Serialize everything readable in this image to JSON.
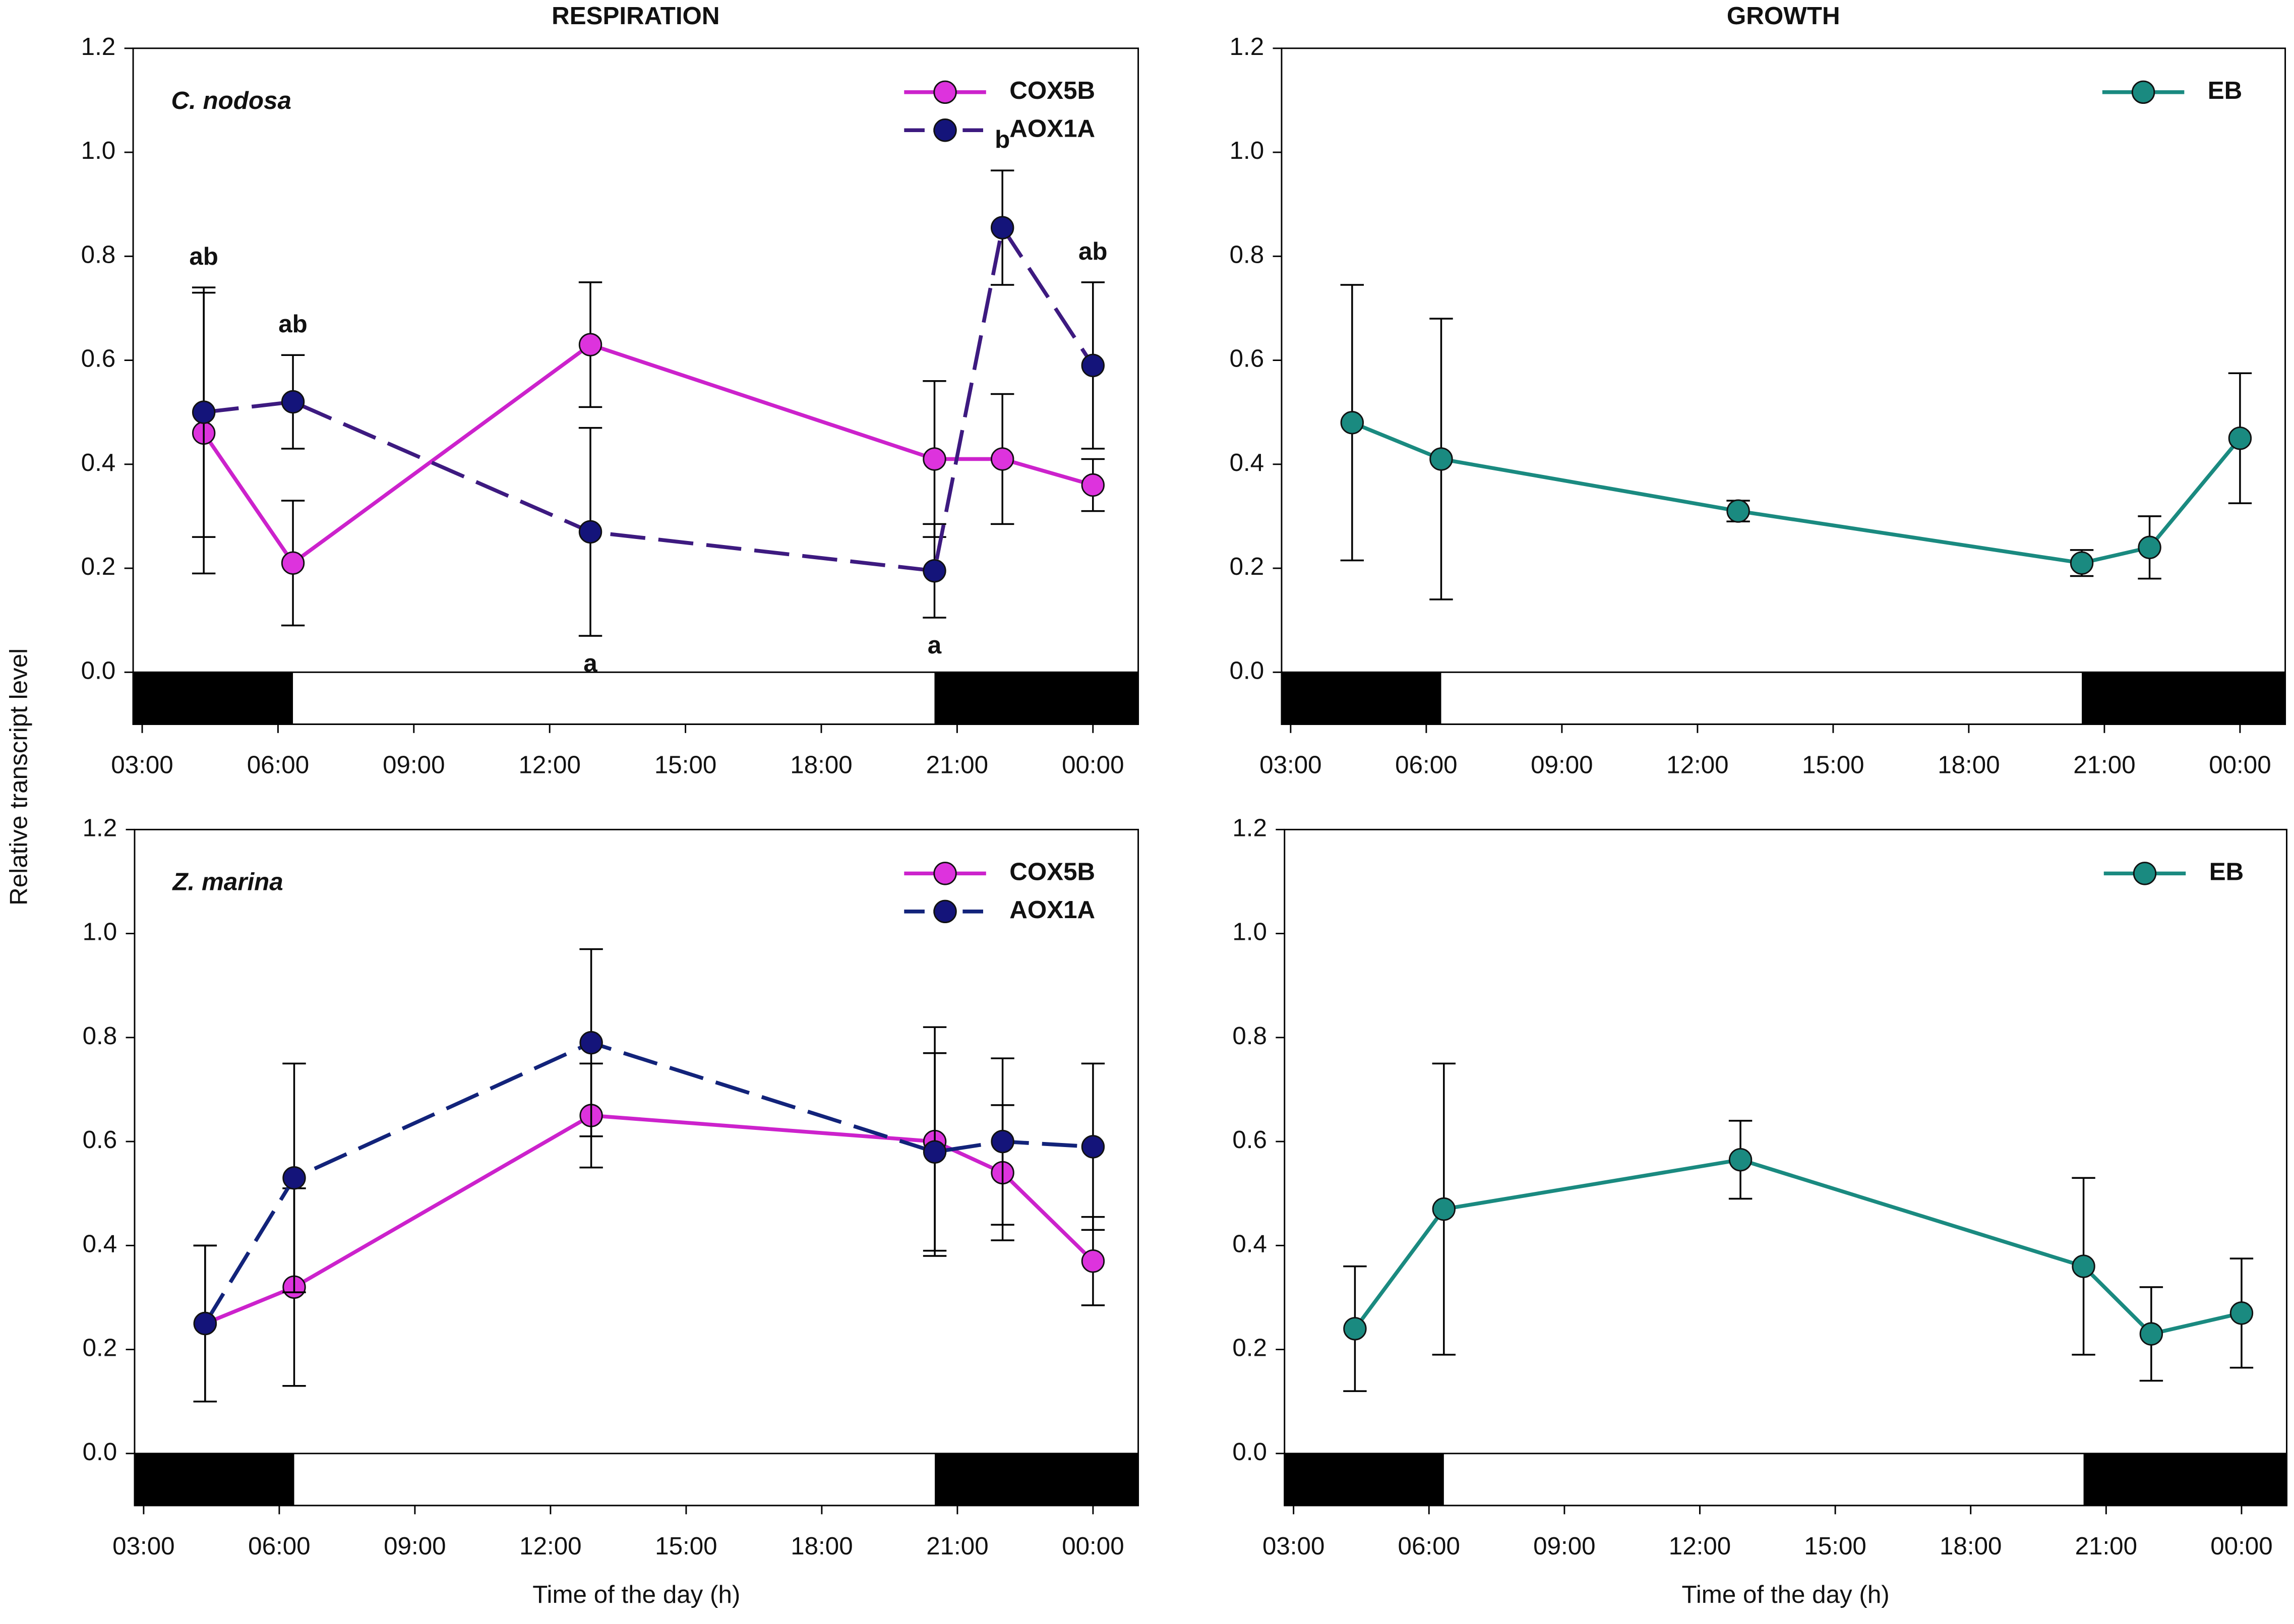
{
  "chart_data": [
    {
      "type": "line",
      "title": "RESPIRATION",
      "annotation": "C. nodosa",
      "ylabel": "Relative transcript level",
      "x": [
        4.36,
        6.33,
        12.9,
        20.5,
        22.0,
        24.0
      ],
      "xlim": [
        2.8,
        25.0
      ],
      "xticks": [
        {
          "value": 3,
          "label": "03:00"
        },
        {
          "value": 6,
          "label": "06:00"
        },
        {
          "value": 9,
          "label": "09:00"
        },
        {
          "value": 12,
          "label": "12:00"
        },
        {
          "value": 15,
          "label": "15:00"
        },
        {
          "value": 18,
          "label": "18:00"
        },
        {
          "value": 21,
          "label": "21:00"
        },
        {
          "value": 24,
          "label": "00:00"
        }
      ],
      "ylim": [
        -0.1,
        1.2
      ],
      "yticks": [
        {
          "value": 0,
          "label": "0.0"
        },
        0.2,
        0.4,
        0.6,
        0.8,
        {
          "value": 1,
          "label": "1.0"
        },
        1.2
      ],
      "dark_periods": [
        [
          2.8,
          6.33
        ],
        [
          20.5,
          25.0
        ]
      ],
      "legend": "upper right",
      "series": [
        {
          "name": "COX5B",
          "color": "#cc22cc",
          "marker_color": "#dd33dd",
          "line_style": "solid",
          "values": [
            0.46,
            0.21,
            0.63,
            0.41,
            0.41,
            0.36
          ],
          "errors": [
            0.27,
            0.12,
            0.12,
            0.15,
            0.125,
            0.05
          ]
        },
        {
          "name": "AOX1A",
          "color": "#3d1a80",
          "marker_color": "#14147a",
          "line_style": "dashed",
          "values": [
            0.5,
            0.52,
            0.27,
            0.195,
            0.855,
            0.59
          ],
          "errors": [
            0.24,
            0.09,
            0.2,
            0.09,
            0.11,
            0.16
          ],
          "letters": [
            "ab",
            "ab",
            "a",
            "a",
            "b",
            "ab"
          ],
          "letter_color": "#3d1a80"
        }
      ]
    },
    {
      "type": "line",
      "title": "GROWTH",
      "x": [
        4.36,
        6.33,
        12.9,
        20.5,
        22.0,
        24.0
      ],
      "xlim": [
        2.8,
        25.0
      ],
      "xticks": [
        {
          "value": 3,
          "label": "03:00"
        },
        {
          "value": 6,
          "label": "06:00"
        },
        {
          "value": 9,
          "label": "09:00"
        },
        {
          "value": 12,
          "label": "12:00"
        },
        {
          "value": 15,
          "label": "15:00"
        },
        {
          "value": 18,
          "label": "18:00"
        },
        {
          "value": 21,
          "label": "21:00"
        },
        {
          "value": 24,
          "label": "00:00"
        }
      ],
      "ylim": [
        -0.1,
        1.2
      ],
      "yticks": [
        {
          "value": 0,
          "label": "0.0"
        },
        0.2,
        0.4,
        0.6,
        0.8,
        {
          "value": 1,
          "label": "1.0"
        },
        1.2
      ],
      "dark_periods": [
        [
          2.8,
          6.33
        ],
        [
          20.5,
          25.0
        ]
      ],
      "legend": "upper right",
      "series": [
        {
          "name": "EB",
          "color": "#1a8a80",
          "marker_color": "#1a8a80",
          "line_style": "solid",
          "values": [
            0.48,
            0.41,
            0.31,
            0.21,
            0.24,
            0.45
          ],
          "errors": [
            0.265,
            0.27,
            0.02,
            0.025,
            0.06,
            0.125
          ]
        }
      ]
    },
    {
      "type": "line",
      "annotation": "Z. marina",
      "xlabel": "Time of the day (h)",
      "x": [
        4.36,
        6.33,
        12.9,
        20.5,
        22.0,
        24.0
      ],
      "xlim": [
        2.8,
        25.0
      ],
      "xticks": [
        {
          "value": 3,
          "label": "03:00"
        },
        {
          "value": 6,
          "label": "06:00"
        },
        {
          "value": 9,
          "label": "09:00"
        },
        {
          "value": 12,
          "label": "12:00"
        },
        {
          "value": 15,
          "label": "15:00"
        },
        {
          "value": 18,
          "label": "18:00"
        },
        {
          "value": 21,
          "label": "21:00"
        },
        {
          "value": 24,
          "label": "00:00"
        }
      ],
      "ylim": [
        -0.1,
        1.2
      ],
      "yticks": [
        {
          "value": 0,
          "label": "0.0"
        },
        0.2,
        0.4,
        0.6,
        0.8,
        {
          "value": 1,
          "label": "1.0"
        },
        1.2
      ],
      "dark_periods": [
        [
          2.8,
          6.33
        ],
        [
          20.5,
          25.0
        ]
      ],
      "legend": "upper right",
      "series": [
        {
          "name": "COX5B",
          "color": "#cc22cc",
          "marker_color": "#dd33dd",
          "line_style": "solid",
          "values": [
            0.25,
            0.32,
            0.65,
            0.6,
            0.54,
            0.37
          ],
          "errors": [
            0.15,
            0.19,
            0.1,
            0.22,
            0.13,
            0.085
          ]
        },
        {
          "name": "AOX1A",
          "color": "#12237a",
          "marker_color": "#14147a",
          "line_style": "dashed",
          "values": [
            0.25,
            0.53,
            0.79,
            0.58,
            0.6,
            0.59
          ],
          "errors": [
            0.15,
            0.22,
            0.18,
            0.19,
            0.16,
            0.16
          ]
        }
      ]
    },
    {
      "type": "line",
      "xlabel": "Time of the day (h)",
      "x": [
        4.36,
        6.33,
        12.9,
        20.5,
        22.0,
        24.0
      ],
      "xlim": [
        2.8,
        25.0
      ],
      "xticks": [
        {
          "value": 3,
          "label": "03:00"
        },
        {
          "value": 6,
          "label": "06:00"
        },
        {
          "value": 9,
          "label": "09:00"
        },
        {
          "value": 12,
          "label": "12:00"
        },
        {
          "value": 15,
          "label": "15:00"
        },
        {
          "value": 18,
          "label": "18:00"
        },
        {
          "value": 21,
          "label": "21:00"
        },
        {
          "value": 24,
          "label": "00:00"
        }
      ],
      "ylim": [
        -0.1,
        1.2
      ],
      "yticks": [
        {
          "value": 0,
          "label": "0.0"
        },
        0.2,
        0.4,
        0.6,
        0.8,
        {
          "value": 1,
          "label": "1.0"
        },
        1.2
      ],
      "dark_periods": [
        [
          2.8,
          6.33
        ],
        [
          20.5,
          25.0
        ]
      ],
      "legend": "upper right",
      "series": [
        {
          "name": "EB",
          "color": "#1a8a80",
          "marker_color": "#1a8a80",
          "line_style": "solid",
          "values": [
            0.24,
            0.47,
            0.565,
            0.36,
            0.23,
            0.27
          ],
          "errors": [
            0.12,
            0.28,
            0.075,
            0.17,
            0.09,
            0.105
          ]
        }
      ]
    }
  ]
}
